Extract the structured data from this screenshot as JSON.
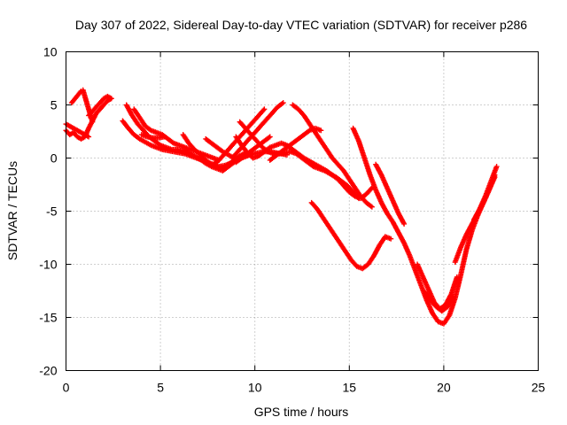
{
  "chart_data": {
    "type": "scatter",
    "title": "Day 307 of 2022, Sidereal Day-to-day VTEC variation (SDTVAR) for receiver p286",
    "xlabel": "GPS time / hours",
    "ylabel": "SDTVAR / TECUs",
    "xlim": [
      0,
      25
    ],
    "ylim": [
      -20,
      10
    ],
    "xticks": [
      "0",
      "5",
      "10",
      "15",
      "20",
      "25"
    ],
    "yticks": [
      "10",
      "5",
      "0",
      "-5",
      "-10",
      "-15",
      "-20"
    ],
    "grid": true,
    "marker": "plus",
    "color": "#ff0000",
    "series": [
      {
        "x": [
          0.0,
          0.2,
          0.4,
          0.6,
          0.8,
          1.0,
          1.2,
          1.4,
          1.6,
          1.8,
          2.0,
          2.2,
          2.4
        ],
        "y": [
          2.6,
          2.2,
          2.4,
          2.0,
          1.8,
          2.0,
          2.8,
          3.5,
          4.2,
          4.6,
          5.0,
          5.4,
          5.6
        ]
      },
      {
        "x": [
          0.0,
          0.2,
          0.4,
          0.6,
          0.8,
          1.0,
          1.2
        ],
        "y": [
          3.2,
          3.0,
          2.8,
          2.6,
          2.4,
          2.2,
          2.0
        ]
      },
      {
        "x": [
          1.2,
          1.4,
          1.6,
          1.8,
          2.0,
          2.2,
          2.4
        ],
        "y": [
          4.0,
          4.4,
          4.8,
          5.2,
          5.6,
          5.8,
          5.6
        ]
      },
      {
        "x": [
          3.0,
          3.3,
          3.6,
          3.9,
          4.2,
          4.5,
          4.8,
          5.1,
          5.4,
          5.7,
          6.0,
          6.3,
          6.6,
          6.9,
          7.2,
          7.5,
          7.8,
          8.1,
          8.4,
          8.7,
          9.0,
          9.3,
          9.6,
          9.9,
          10.2,
          10.5,
          10.8,
          11.1,
          11.4,
          11.7
        ],
        "y": [
          3.5,
          2.8,
          2.2,
          1.8,
          1.5,
          1.2,
          1.0,
          0.8,
          0.7,
          0.6,
          0.5,
          0.4,
          0.2,
          0.0,
          -0.2,
          -0.4,
          -0.6,
          -0.8,
          -0.7,
          -0.5,
          -0.2,
          0.0,
          0.2,
          0.4,
          0.5,
          0.6,
          0.6,
          0.5,
          0.4,
          0.3
        ]
      },
      {
        "x": [
          3.2,
          3.5,
          3.8,
          4.1,
          4.4,
          4.7,
          5.0,
          5.3,
          5.6,
          5.9,
          6.2,
          6.5,
          6.8,
          7.1,
          7.4,
          7.7,
          8.0,
          8.3,
          8.6,
          8.9,
          9.2,
          9.5,
          9.8
        ],
        "y": [
          5.0,
          4.0,
          3.2,
          2.6,
          2.0,
          1.6,
          1.2,
          1.0,
          0.8,
          0.8,
          0.7,
          0.5,
          0.2,
          -0.1,
          -0.5,
          -0.8,
          -1.0,
          -1.2,
          -0.8,
          -0.4,
          -0.1,
          0.2,
          0.4
        ]
      },
      {
        "x": [
          3.6,
          3.9,
          4.2,
          4.5,
          4.8,
          5.1,
          5.4,
          5.7,
          6.0,
          6.3,
          6.6,
          6.9,
          7.2,
          7.5,
          7.8,
          8.1
        ],
        "y": [
          4.6,
          3.8,
          3.0,
          2.6,
          2.4,
          2.2,
          1.8,
          1.4,
          1.2,
          1.0,
          0.8,
          0.6,
          0.4,
          0.2,
          0.0,
          -0.2
        ]
      },
      {
        "x": [
          4.0,
          4.3,
          4.6,
          4.9,
          5.2
        ],
        "y": [
          2.2,
          2.0,
          1.9,
          1.9,
          2.0
        ]
      },
      {
        "x": [
          6.2,
          6.5,
          6.8,
          7.1,
          7.4,
          7.7,
          8.0,
          8.3,
          8.6,
          8.9,
          9.2,
          9.5
        ],
        "y": [
          2.2,
          1.4,
          0.8,
          0.3,
          -0.2,
          -0.6,
          -0.9,
          -1.0,
          -0.6,
          -0.2,
          0.2,
          0.5
        ]
      },
      {
        "x": [
          7.4,
          7.7,
          8.0,
          8.3,
          8.6,
          8.9
        ],
        "y": [
          1.8,
          1.4,
          1.0,
          0.6,
          0.3,
          0.0
        ]
      },
      {
        "x": [
          7.8,
          8.1,
          8.4,
          8.7,
          9.0,
          9.3,
          9.6,
          9.9,
          10.2,
          10.5
        ],
        "y": [
          -0.6,
          -0.2,
          0.4,
          1.0,
          1.6,
          2.2,
          2.8,
          3.4,
          4.0,
          4.6
        ]
      },
      {
        "x": [
          8.8,
          9.1,
          9.4,
          9.7,
          10.0,
          10.3,
          10.6,
          10.9,
          11.2,
          11.5
        ],
        "y": [
          0.0,
          0.6,
          1.2,
          1.8,
          2.4,
          3.0,
          3.6,
          4.2,
          4.8,
          5.2
        ]
      },
      {
        "x": [
          9.0,
          9.3,
          9.6,
          9.9,
          10.2,
          10.5,
          10.8
        ],
        "y": [
          -0.4,
          0.0,
          0.4,
          0.8,
          1.2,
          1.6,
          2.0
        ]
      },
      {
        "x": [
          9.2,
          9.5,
          9.8,
          10.1,
          10.4,
          10.7,
          11.0,
          11.3,
          11.6,
          11.9,
          12.2,
          12.5,
          12.8,
          13.1,
          13.4,
          13.7,
          14.0,
          14.3,
          14.6,
          14.9,
          15.2,
          15.5
        ],
        "y": [
          3.4,
          2.8,
          2.2,
          1.6,
          1.0,
          0.6,
          0.4,
          0.4,
          0.5,
          0.6,
          0.4,
          0.0,
          -0.4,
          -0.8,
          -1.0,
          -1.2,
          -1.5,
          -1.8,
          -2.2,
          -2.6,
          -3.2,
          -3.8
        ]
      },
      {
        "x": [
          9.0,
          9.3,
          9.6,
          9.9,
          10.2,
          10.5,
          10.8,
          11.1,
          11.4,
          11.7,
          12.0,
          12.3,
          12.6,
          12.9,
          13.2,
          13.5,
          13.8,
          14.1,
          14.4,
          14.7,
          15.0,
          15.3,
          15.6,
          15.9,
          16.2
        ],
        "y": [
          2.0,
          1.2,
          0.5,
          0.0,
          0.2,
          0.6,
          1.0,
          1.2,
          1.4,
          1.2,
          0.8,
          0.4,
          0.0,
          -0.3,
          -0.6,
          -0.9,
          -1.2,
          -1.6,
          -2.0,
          -2.6,
          -3.2,
          -3.6,
          -3.8,
          -3.4,
          -2.8
        ]
      },
      {
        "x": [
          12.0,
          12.3,
          12.6,
          12.9,
          13.2,
          13.5,
          13.8,
          14.1,
          14.4,
          14.7,
          15.0,
          15.3,
          15.6,
          15.9,
          16.2
        ],
        "y": [
          5.0,
          4.6,
          4.0,
          3.2,
          2.4,
          1.6,
          0.8,
          0.0,
          -0.6,
          -1.2,
          -2.0,
          -2.8,
          -3.6,
          -4.2,
          -4.6
        ]
      },
      {
        "x": [
          10.8,
          11.1,
          11.4,
          11.7,
          12.0,
          12.3,
          12.6,
          12.9,
          13.2,
          13.5
        ],
        "y": [
          -0.2,
          0.2,
          0.6,
          1.0,
          1.4,
          1.8,
          2.2,
          2.6,
          2.8,
          2.6
        ]
      },
      {
        "x": [
          15.2,
          15.5,
          15.8,
          16.1,
          16.4,
          16.7,
          17.0,
          17.3,
          17.6,
          17.9,
          18.2,
          18.5,
          18.8,
          19.1,
          19.4,
          19.7,
          20.0,
          20.3,
          20.6,
          20.9,
          21.2,
          21.5,
          21.8,
          22.1,
          22.4,
          22.7
        ],
        "y": [
          2.8,
          1.6,
          0.0,
          -1.6,
          -3.0,
          -4.2,
          -5.2,
          -6.0,
          -7.0,
          -8.0,
          -9.2,
          -10.6,
          -12.0,
          -13.4,
          -14.6,
          -15.4,
          -15.6,
          -14.8,
          -13.2,
          -11.0,
          -8.6,
          -6.8,
          -5.4,
          -4.2,
          -3.0,
          -1.6
        ]
      },
      {
        "x": [
          13.0,
          13.3,
          13.6,
          13.9,
          14.2,
          14.5,
          14.8,
          15.1,
          15.4,
          15.7,
          16.0,
          16.3,
          16.6,
          16.9,
          17.2
        ],
        "y": [
          -4.2,
          -4.8,
          -5.6,
          -6.4,
          -7.2,
          -8.0,
          -8.8,
          -9.6,
          -10.2,
          -10.4,
          -10.0,
          -9.2,
          -8.2,
          -7.4,
          -7.6
        ]
      },
      {
        "x": [
          16.4,
          16.7,
          17.0,
          17.3,
          17.6,
          17.9
        ],
        "y": [
          -0.6,
          -1.6,
          -2.8,
          -4.0,
          -5.2,
          -6.2
        ]
      },
      {
        "x": [
          18.6,
          18.9,
          19.2,
          19.5,
          19.8,
          20.1,
          20.4,
          20.7
        ],
        "y": [
          -10.0,
          -11.2,
          -12.4,
          -13.6,
          -14.2,
          -13.8,
          -12.8,
          -11.2
        ]
      },
      {
        "x": [
          19.0,
          19.3,
          19.6,
          19.9,
          20.2,
          20.5
        ],
        "y": [
          -12.6,
          -13.4,
          -14.0,
          -14.4,
          -14.0,
          -13.0
        ]
      },
      {
        "x": [
          20.6,
          20.9,
          21.2,
          21.5,
          21.8,
          22.1,
          22.4,
          22.7
        ],
        "y": [
          -9.8,
          -8.4,
          -7.2,
          -6.2,
          -5.2,
          -4.2,
          -3.0,
          -1.8
        ]
      },
      {
        "x": [
          21.6,
          21.9,
          22.2,
          22.5,
          22.8
        ],
        "y": [
          -5.8,
          -4.8,
          -3.6,
          -2.2,
          -0.8
        ]
      },
      {
        "x": [
          0.3,
          0.8,
          0.9,
          1.4
        ],
        "y": [
          5.2,
          6.3,
          6.4,
          3.4
        ]
      }
    ]
  }
}
